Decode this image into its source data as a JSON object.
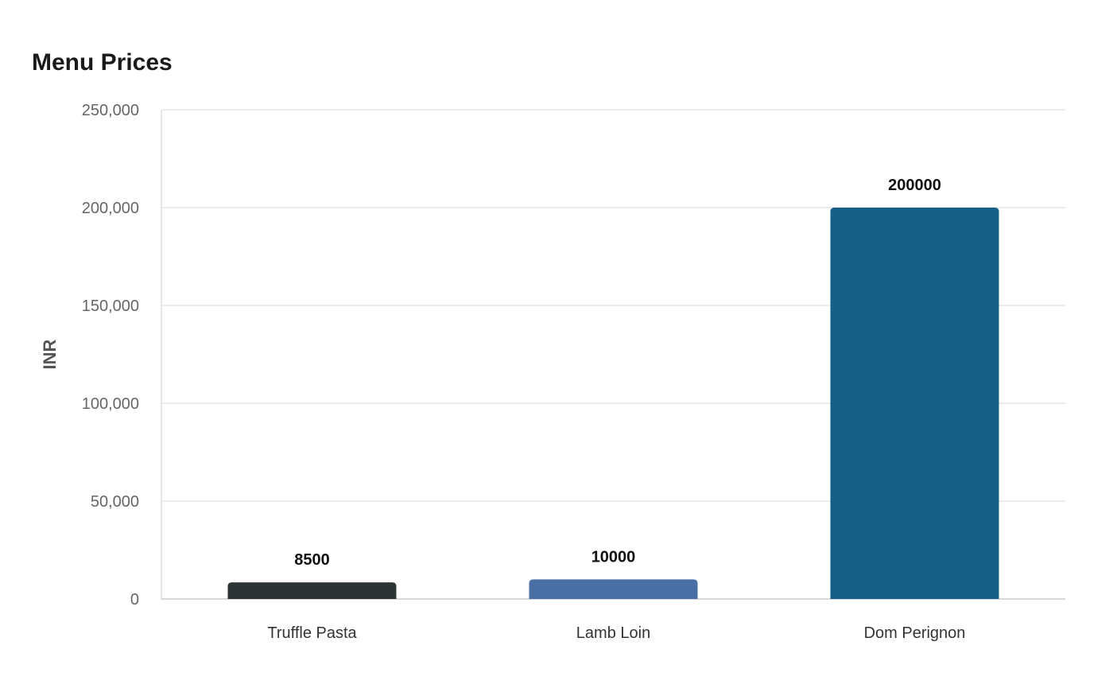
{
  "chart_data": {
    "type": "bar",
    "title": "Menu Prices",
    "xlabel": "",
    "ylabel": "INR",
    "categories": [
      "Truffle Pasta",
      "Lamb Loin",
      "Dom Perignon"
    ],
    "values": [
      8500,
      10000,
      200000
    ],
    "value_labels": [
      "8500",
      "10000",
      "200000"
    ],
    "ylim": [
      0,
      250000
    ],
    "yticks": [
      0,
      50000,
      100000,
      150000,
      200000,
      250000
    ],
    "ytick_labels": [
      "0",
      "50,000",
      "100,000",
      "150,000",
      "200,000",
      "250,000"
    ],
    "colors": [
      "#2d3436",
      "#4a6fa5",
      "#166088"
    ],
    "grid": true,
    "legend": "none"
  }
}
